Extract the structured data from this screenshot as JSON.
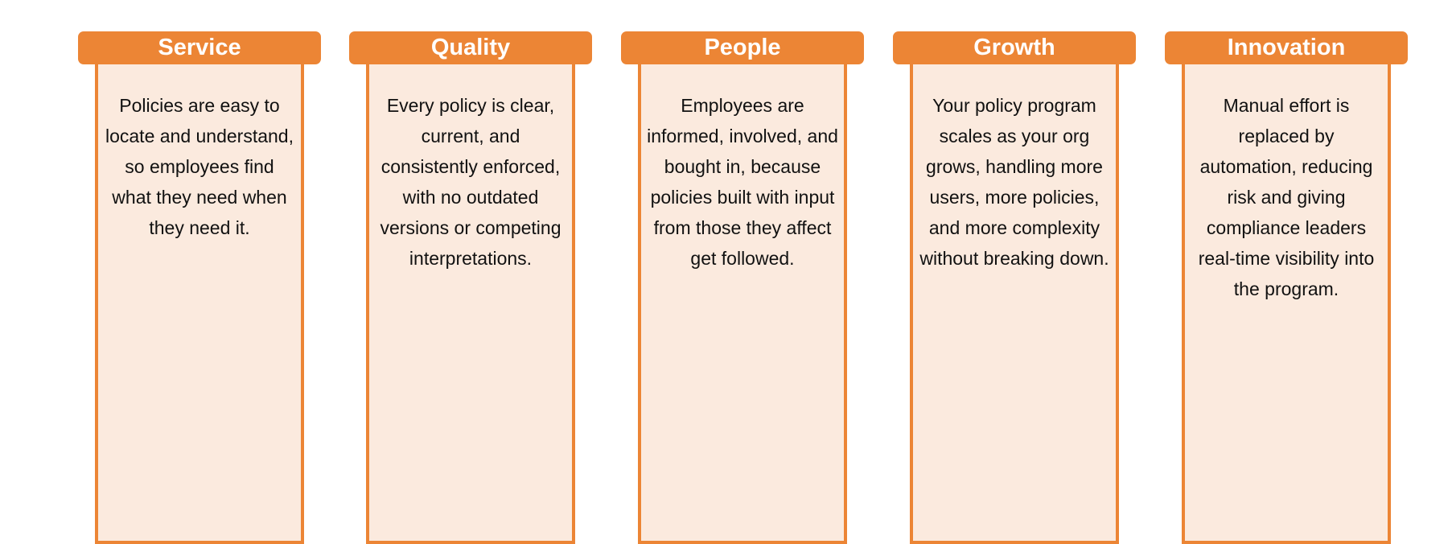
{
  "accent_color": "#ec8535",
  "panel_color": "#fbeade",
  "columns": [
    {
      "title": "Service",
      "text": "Policies are easy to locate and understand, so employees find what they need when they need it."
    },
    {
      "title": "Quality",
      "text": "Every policy is clear, current, and consistently enforced, with no outdated versions or competing interpretations."
    },
    {
      "title": "People",
      "text": "Employees are informed, involved, and bought in, because policies built with input from those they affect get followed."
    },
    {
      "title": "Growth",
      "text": "Your policy program scales as your org grows, handling more users, more policies, and more complexity without breaking down."
    },
    {
      "title": "Innovation",
      "text": "Manual effort is replaced by automation, reducing risk and giving compliance leaders real-time visibility into the program."
    }
  ]
}
